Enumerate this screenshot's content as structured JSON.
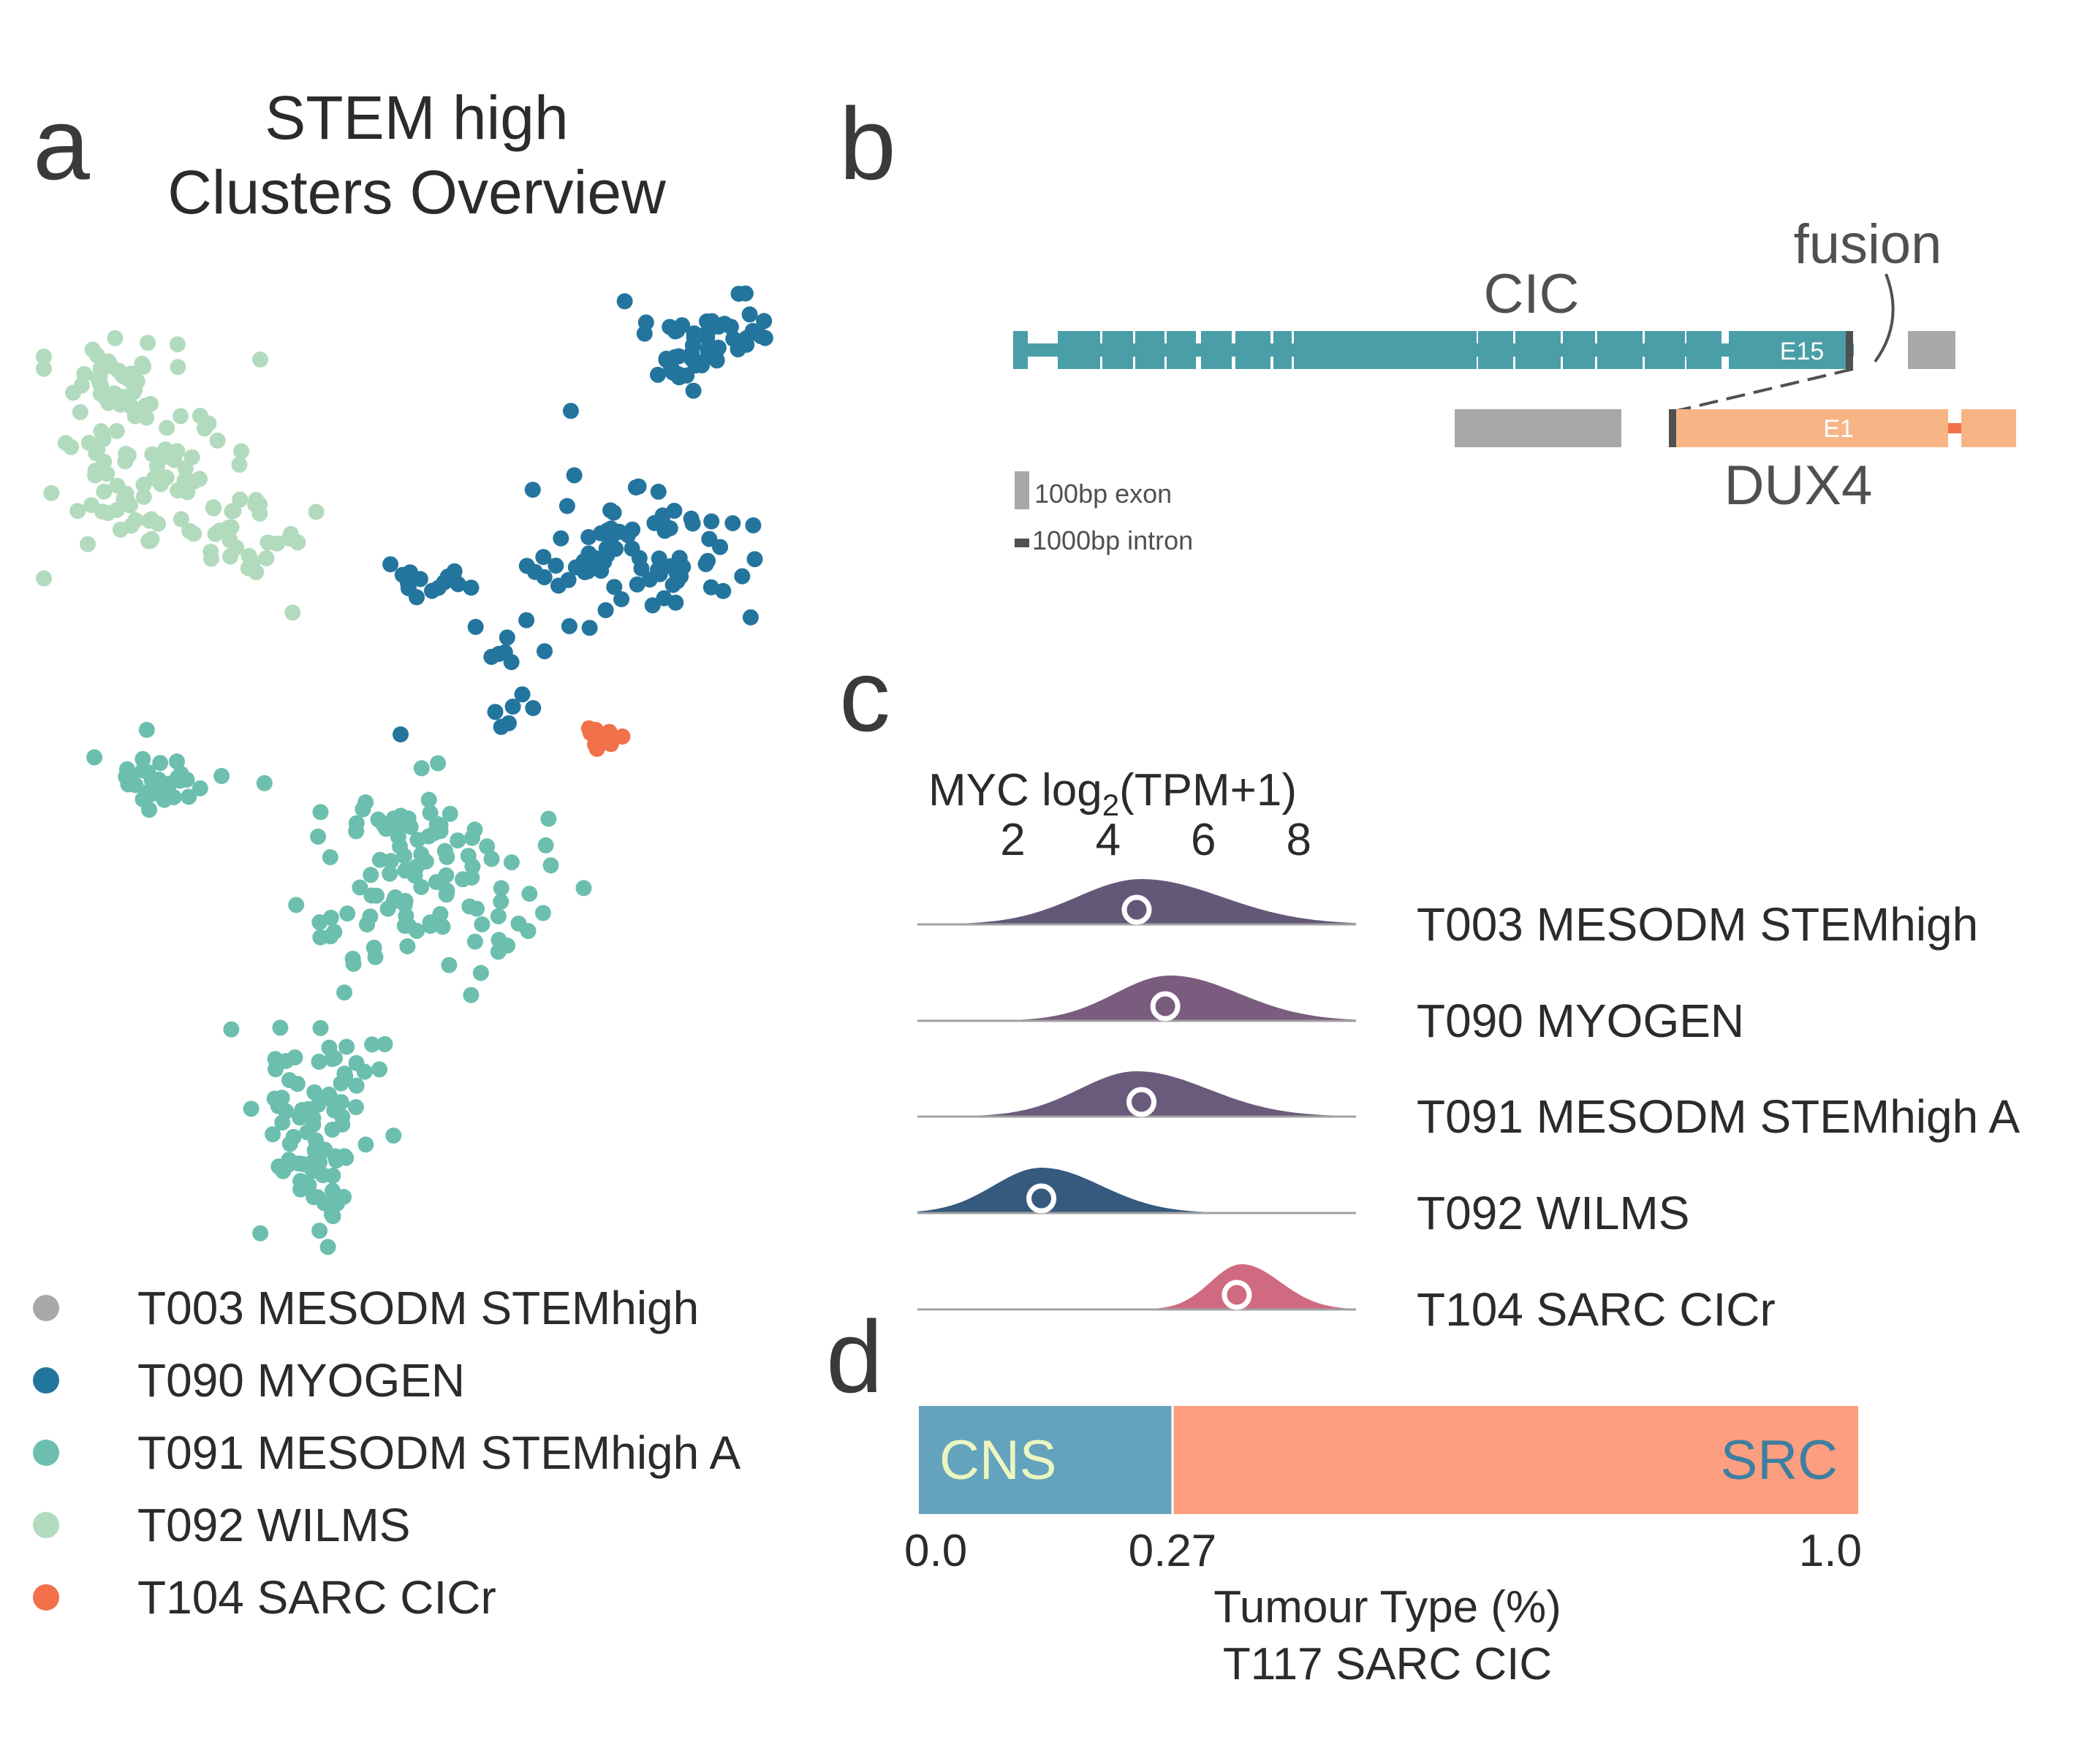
{
  "panels": {
    "a": "a",
    "b": "b",
    "c": "c",
    "d": "d"
  },
  "panel_a": {
    "title_line1": "STEM high",
    "title_line2": "Clusters Overview"
  },
  "panel_b": {
    "gene1": "CIC",
    "gene2": "DUX4",
    "fusion_label": "fusion",
    "exon1_label": "E15",
    "exon2_label": "E1",
    "scale_exon": "100bp exon",
    "scale_intron": "1000bp intron",
    "colors": {
      "CIC": "#4a9ea8",
      "DUX4": "#f7b586",
      "other": "#a8a8a8",
      "junction": "#505050"
    }
  },
  "panel_c": {
    "title_prefix": "MYC log",
    "title_sub": "2",
    "title_suffix": "(TPM+1)"
  },
  "panel_d": {
    "xlabel_line1": "Tumour Type (%)",
    "xlabel_line2": "T117 SARC CIC"
  },
  "chart_data": [
    {
      "type": "scatter",
      "title": "STEM high Clusters Overview",
      "legend": [
        {
          "name": "T003 MESODM STEMhigh",
          "color": "#a8a8a8"
        },
        {
          "name": "T090 MYOGEN",
          "color": "#23759e"
        },
        {
          "name": "T091 MESODM STEMhigh A",
          "color": "#6cbfae"
        },
        {
          "name": "T092 WILMS",
          "color": "#b2dbbe"
        },
        {
          "name": "T104 SARC CICr",
          "color": "#f2704a"
        }
      ],
      "legend_position": "bottom-left",
      "grid": false,
      "series": [
        {
          "name": "T092 WILMS",
          "color": "#b2dbbe",
          "points": 140
        },
        {
          "name": "T090 MYOGEN",
          "color": "#23759e",
          "points": 170
        },
        {
          "name": "T091 MESODM STEMhigh A",
          "color": "#6cbfae",
          "points": 230
        },
        {
          "name": "T104 SARC CICr",
          "color": "#f2704a",
          "points": 14
        }
      ]
    },
    {
      "type": "area",
      "xlabel": "MYC log2(TPM+1)",
      "xticks": [
        2,
        4,
        6,
        8
      ],
      "xlim": [
        0.0,
        9.2
      ],
      "series": [
        {
          "name": "T003 MESODM STEMhigh",
          "color": "#645878",
          "median": 4.6,
          "peak": 4.7,
          "width": 1.35
        },
        {
          "name": "T090 MYOGEN",
          "color": "#7a5c7e",
          "median": 5.2,
          "peak": 5.3,
          "width": 1.15
        },
        {
          "name": "T091 MESODM STEMhigh A",
          "color": "#6a5a7c",
          "median": 4.7,
          "peak": 4.6,
          "width": 1.2
        },
        {
          "name": "T092 WILMS",
          "color": "#365a7e",
          "median": 2.6,
          "peak": 2.6,
          "width": 1.0
        },
        {
          "name": "T104 SARC CICr",
          "color": "#d06a80",
          "median": 6.7,
          "peak": 6.8,
          "width": 0.65
        }
      ]
    },
    {
      "type": "bar",
      "orientation": "horizontal-stacked",
      "categories": [
        "CNS",
        "SRC"
      ],
      "values": [
        0.27,
        0.73
      ],
      "colors": [
        "#64a3bd",
        "#fd9e80"
      ],
      "label_colors": [
        "#ecf6c0",
        "#3c7fa0"
      ],
      "xticks": [
        "0.0",
        "0.27",
        "1.0"
      ],
      "xlim": [
        0.0,
        1.0
      ],
      "xlabel": "Tumour Type (%)",
      "subtitle": "T117 SARC CIC"
    }
  ]
}
